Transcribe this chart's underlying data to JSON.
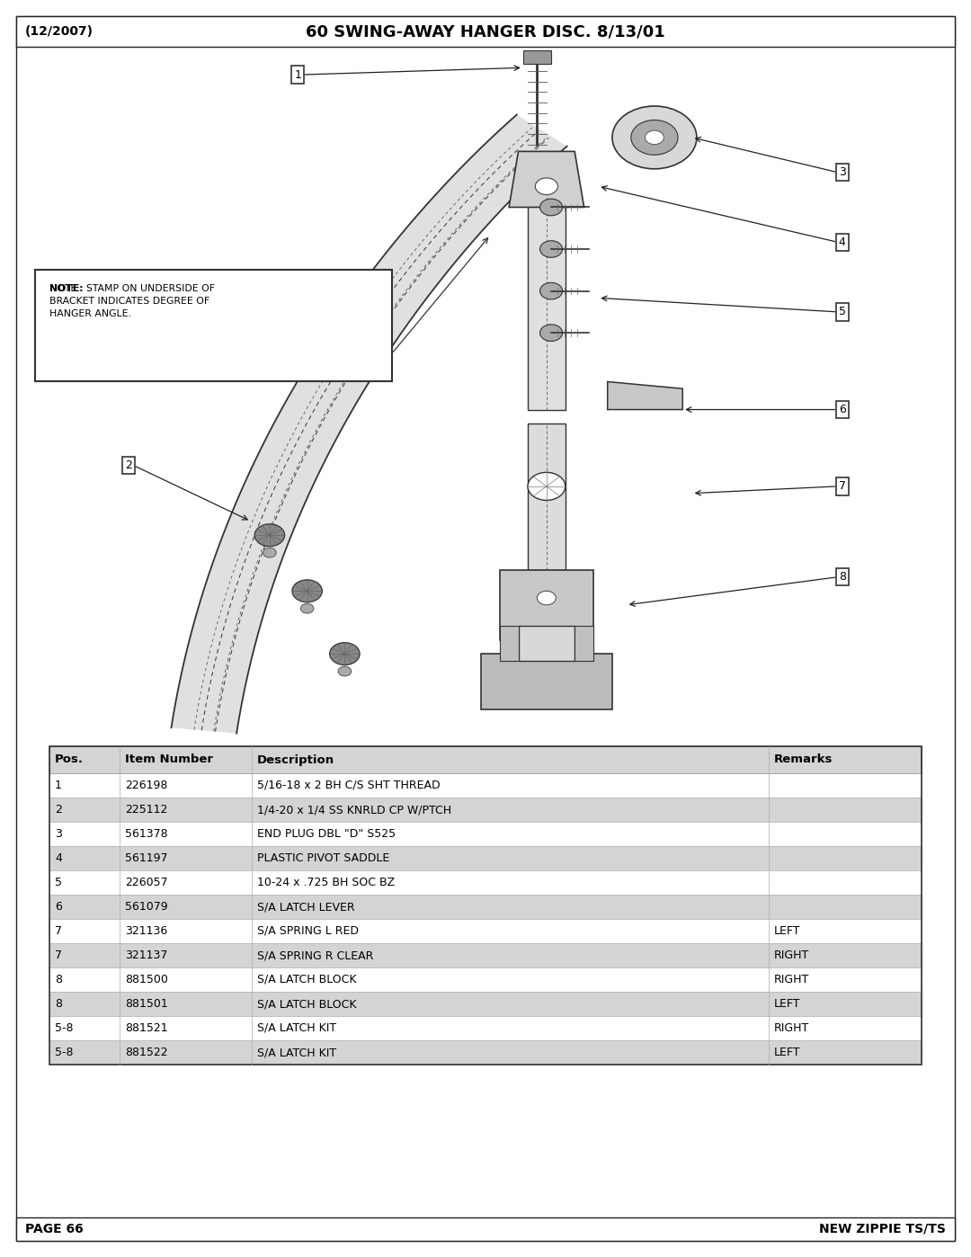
{
  "page_title": "60 SWING-AWAY HANGER DISC. 8/13/01",
  "page_date": "(12/2007)",
  "page_number": "PAGE 66",
  "brand": "NEW ZIPPIE TS/TS",
  "bg_color": "#ffffff",
  "table_header": [
    "Pos.",
    "Item Number",
    "Description",
    "Remarks"
  ],
  "table_rows": [
    [
      "1",
      "226198",
      "5/16-18 x 2 BH C/S SHT THREAD",
      ""
    ],
    [
      "2",
      "225112",
      "1/4-20 x 1/4 SS KNRLD CP W/PTCH",
      ""
    ],
    [
      "3",
      "561378",
      "END PLUG DBL \"D\" S525",
      ""
    ],
    [
      "4",
      "561197",
      "PLASTIC PIVOT SADDLE",
      ""
    ],
    [
      "5",
      "226057",
      "10-24 x .725 BH SOC BZ",
      ""
    ],
    [
      "6",
      "561079",
      "S/A LATCH LEVER",
      ""
    ],
    [
      "7",
      "321136",
      "S/A SPRING L RED",
      "LEFT"
    ],
    [
      "7",
      "321137",
      "S/A SPRING R CLEAR",
      "RIGHT"
    ],
    [
      "8",
      "881500",
      "S/A LATCH BLOCK",
      "RIGHT"
    ],
    [
      "8",
      "881501",
      "S/A LATCH BLOCK",
      "LEFT"
    ],
    [
      "5-8",
      "881521",
      "S/A LATCH KIT",
      "RIGHT"
    ],
    [
      "5-8",
      "881522",
      "S/A LATCH KIT",
      "LEFT"
    ]
  ],
  "row_colors": [
    "#ffffff",
    "#d4d4d4"
  ],
  "header_row_color": "#d4d4d4",
  "note_bold": "NOTE:",
  "note_rest": "  STAMP ON UNDERSIDE OF\nBRACKET INDICATES DEGREE OF\nHANGER ANGLE."
}
